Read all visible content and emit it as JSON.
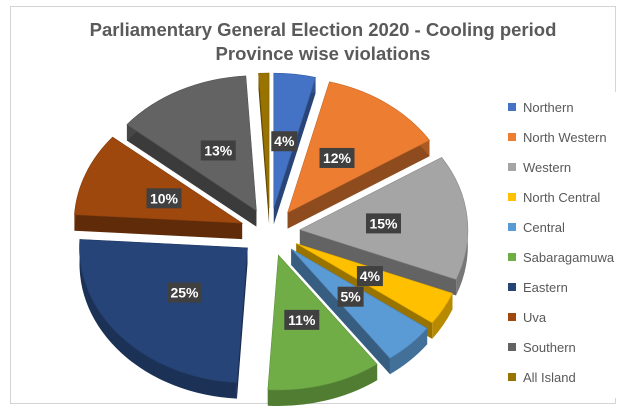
{
  "chart_data": {
    "type": "pie",
    "title_line1": "Parliamentary General Election 2020 - Cooling period",
    "title_line2": "Province wise  violations",
    "categories": [
      "Northern",
      "North Western",
      "Western",
      "North Central",
      "Central",
      "Sabaragamuwa",
      "Eastern",
      "Uva",
      "Southern",
      "All Island"
    ],
    "values": [
      4,
      12,
      15,
      4,
      5,
      11,
      25,
      10,
      13,
      1
    ],
    "labels": [
      "4%",
      "12%",
      "15%",
      "4%",
      "5%",
      "11%",
      "25%",
      "10%",
      "13%",
      ""
    ],
    "colors": [
      "#4472c4",
      "#ed7d31",
      "#a5a5a5",
      "#ffc000",
      "#5b9bd5",
      "#70ad47",
      "#264478",
      "#9e480e",
      "#636363",
      "#997300"
    ],
    "style": "3d-exploded",
    "legend_position": "right"
  }
}
